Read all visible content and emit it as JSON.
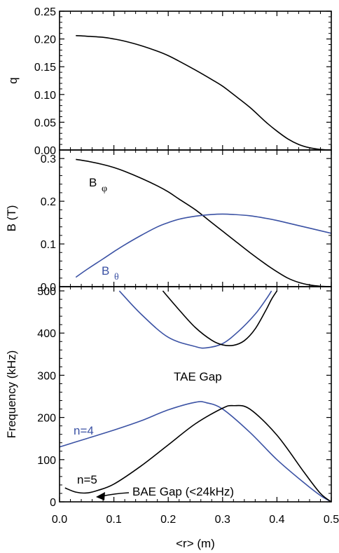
{
  "chart_data": [
    {
      "type": "line",
      "ylabel": "q",
      "xlim": [
        0.0,
        0.5
      ],
      "ylim": [
        0.0,
        0.25
      ],
      "yticks": [
        "0.00",
        "0.05",
        "0.10",
        "0.15",
        "0.20",
        "0.25"
      ],
      "series": [
        {
          "color": "#000000",
          "x": [
            0.03,
            0.05,
            0.08,
            0.1,
            0.12,
            0.15,
            0.18,
            0.2,
            0.22,
            0.25,
            0.28,
            0.3,
            0.32,
            0.35,
            0.38,
            0.4,
            0.42,
            0.44,
            0.46,
            0.48,
            0.49,
            0.5
          ],
          "y": [
            0.206,
            0.205,
            0.203,
            0.2,
            0.196,
            0.188,
            0.178,
            0.17,
            0.16,
            0.144,
            0.127,
            0.115,
            0.1,
            0.077,
            0.05,
            0.034,
            0.02,
            0.01,
            0.004,
            0.001,
            0.0003,
            0.0
          ]
        }
      ]
    },
    {
      "type": "line",
      "ylabel": "B (T)",
      "xlim": [
        0.0,
        0.5
      ],
      "ylim": [
        0.0,
        0.32
      ],
      "yticks": [
        "0.0",
        "0.1",
        "0.2",
        "0.3"
      ],
      "annotations": {
        "bphi": {
          "base": "B",
          "sub": "φ"
        },
        "btheta": {
          "base": "B",
          "sub": "θ"
        }
      },
      "series": [
        {
          "color": "#000000",
          "x": [
            0.03,
            0.05,
            0.08,
            0.1,
            0.12,
            0.15,
            0.18,
            0.2,
            0.22,
            0.25,
            0.28,
            0.3,
            0.32,
            0.35,
            0.38,
            0.4,
            0.42,
            0.44,
            0.46,
            0.48,
            0.5
          ],
          "y": [
            0.298,
            0.294,
            0.286,
            0.279,
            0.27,
            0.254,
            0.236,
            0.222,
            0.205,
            0.18,
            0.15,
            0.13,
            0.11,
            0.08,
            0.052,
            0.035,
            0.02,
            0.01,
            0.004,
            0.001,
            0.0
          ]
        },
        {
          "color": "#3b52a4",
          "x": [
            0.03,
            0.05,
            0.08,
            0.1,
            0.12,
            0.15,
            0.18,
            0.2,
            0.22,
            0.25,
            0.28,
            0.3,
            0.32,
            0.35,
            0.38,
            0.4,
            0.42,
            0.45,
            0.48,
            0.5
          ],
          "y": [
            0.022,
            0.04,
            0.065,
            0.082,
            0.098,
            0.12,
            0.14,
            0.15,
            0.158,
            0.165,
            0.169,
            0.17,
            0.169,
            0.166,
            0.16,
            0.155,
            0.149,
            0.14,
            0.131,
            0.125
          ]
        }
      ]
    },
    {
      "type": "line",
      "xlabel": "<r> (m)",
      "ylabel": "Frequency  (kHz)",
      "xlim": [
        0.0,
        0.5
      ],
      "ylim": [
        0,
        510
      ],
      "xticks": [
        "0.0",
        "0.1",
        "0.2",
        "0.3",
        "0.4",
        "0.5"
      ],
      "yticks": [
        "0",
        "100",
        "200",
        "300",
        "400",
        "500"
      ],
      "annotations": {
        "tae_gap": "TAE Gap",
        "n4": "n=4",
        "n5": "n=5",
        "bae_gap": "BAE Gap (<24kHz)"
      },
      "series": [
        {
          "name": "n=4",
          "color": "#3b52a4",
          "x": [
            0.0,
            0.05,
            0.1,
            0.15,
            0.2,
            0.25,
            0.27,
            0.3,
            0.35,
            0.4,
            0.45,
            0.48,
            0.5
          ],
          "y": [
            130,
            150,
            170,
            192,
            218,
            236,
            235,
            220,
            165,
            100,
            45,
            15,
            0
          ]
        },
        {
          "name": "n=5",
          "color": "#000000",
          "x": [
            0.01,
            0.03,
            0.05,
            0.07,
            0.1,
            0.15,
            0.2,
            0.25,
            0.3,
            0.32,
            0.35,
            0.4,
            0.45,
            0.48,
            0.5
          ],
          "y": [
            33,
            23,
            21,
            27,
            42,
            85,
            135,
            185,
            222,
            228,
            220,
            158,
            70,
            20,
            0
          ]
        },
        {
          "color": "#3b52a4",
          "x": [
            0.11,
            0.15,
            0.2,
            0.25,
            0.27,
            0.3,
            0.33,
            0.36,
            0.38,
            0.39
          ],
          "y": [
            500,
            445,
            390,
            368,
            365,
            375,
            405,
            445,
            480,
            500
          ]
        },
        {
          "color": "#000000",
          "x": [
            0.19,
            0.22,
            0.25,
            0.28,
            0.3,
            0.32,
            0.34,
            0.36,
            0.38,
            0.39,
            0.4
          ],
          "y": [
            500,
            455,
            413,
            383,
            372,
            371,
            382,
            410,
            455,
            480,
            500
          ]
        }
      ]
    }
  ]
}
